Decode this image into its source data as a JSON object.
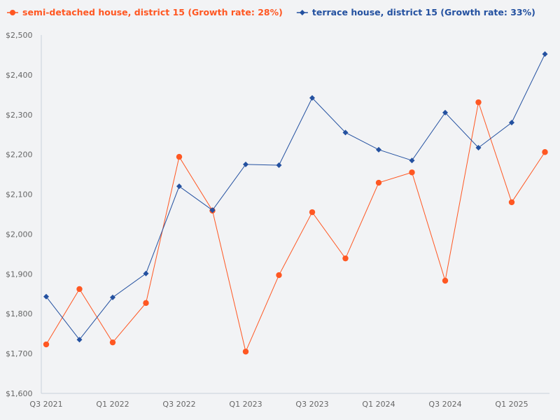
{
  "chart_data": {
    "type": "line",
    "categories": [
      "Q3 2021",
      "Q4 2021",
      "Q1 2022",
      "Q2 2022",
      "Q3 2022",
      "Q4 2022",
      "Q1 2023",
      "Q2 2023",
      "Q3 2023",
      "Q4 2023",
      "Q1 2024",
      "Q2 2024",
      "Q3 2024",
      "Q4 2024",
      "Q1 2025",
      "Q2 2025"
    ],
    "x_tick_labels": [
      "Q3 2021",
      "Q1 2022",
      "Q3 2022",
      "Q1 2023",
      "Q3 2023",
      "Q1 2024",
      "Q3 2024",
      "Q1 2025"
    ],
    "y_tick_labels": [
      "$1,600",
      "$1,700",
      "$1,800",
      "$1,900",
      "$2,000",
      "$2,100",
      "$2,200",
      "$2,300",
      "$2,400",
      "$2,500"
    ],
    "ylim": [
      1600,
      2500
    ],
    "grid": false,
    "legend_position": "top-left",
    "series": [
      {
        "name": "semi-detached house, district 15 (Growth rate: 28%)",
        "color": "#ff5722",
        "marker": "circle",
        "values": [
          1723,
          1862,
          1728,
          1827,
          2194,
          2059,
          1705,
          1897,
          2055,
          1939,
          2129,
          2155,
          1883,
          2331,
          2080,
          2206
        ]
      },
      {
        "name": "terrace house, district 15 (Growth rate: 33%)",
        "color": "#2451a0",
        "marker": "diamond",
        "values": [
          1843,
          1735,
          1841,
          1901,
          2120,
          2060,
          2175,
          2173,
          2342,
          2255,
          2212,
          2185,
          2305,
          2217,
          2280,
          2452
        ]
      }
    ]
  }
}
